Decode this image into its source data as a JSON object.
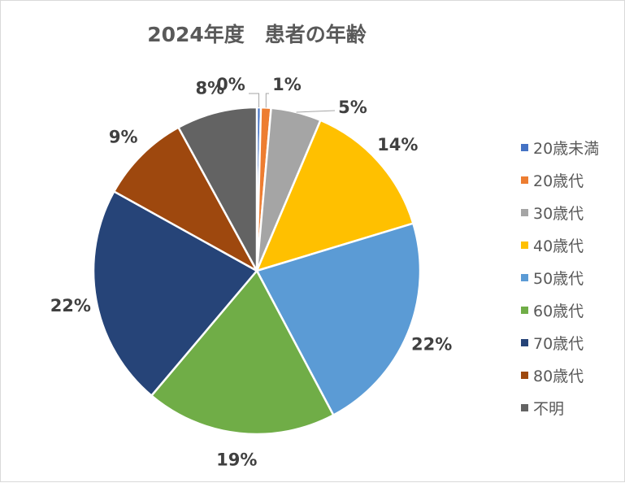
{
  "chart_data": {
    "type": "pie",
    "title": "2024年度　患者の年齢",
    "categories": [
      "20歳未満",
      "20歳代",
      "30歳代",
      "40歳代",
      "50歳代",
      "60歳代",
      "70歳代",
      "80歳代",
      "不明"
    ],
    "values": [
      0.4,
      1,
      5,
      14,
      22,
      19,
      22,
      9,
      8
    ],
    "data_labels": [
      "0%",
      "1%",
      "5%",
      "14%",
      "22%",
      "19%",
      "22%",
      "9%",
      "8%"
    ],
    "colors": [
      "#4472c4",
      "#ed7d31",
      "#a5a5a5",
      "#ffc000",
      "#5b9bd5",
      "#70ad47",
      "#264478",
      "#9e480e",
      "#636363"
    ],
    "legend_position": "right"
  }
}
